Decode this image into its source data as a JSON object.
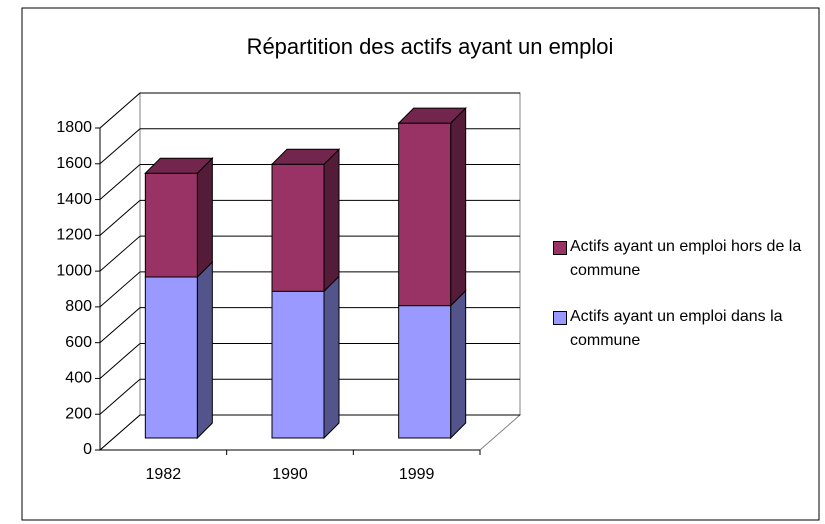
{
  "chart_data": {
    "type": "bar3d_stacked",
    "title": "Répartition des actifs ayant un emploi",
    "categories": [
      "1982",
      "1990",
      "1999"
    ],
    "series": [
      {
        "name": "Actifs ayant un emploi dans la commune",
        "color": "#9999ff",
        "values": [
          900,
          820,
          740
        ]
      },
      {
        "name": "Actifs ayant un emploi hors de la commune",
        "color": "#993366",
        "values": [
          580,
          710,
          1020
        ]
      }
    ],
    "ylim": [
      0,
      1800
    ],
    "yticks": [
      0,
      200,
      400,
      600,
      800,
      1000,
      1200,
      1400,
      1600,
      1800
    ],
    "grid": true
  }
}
